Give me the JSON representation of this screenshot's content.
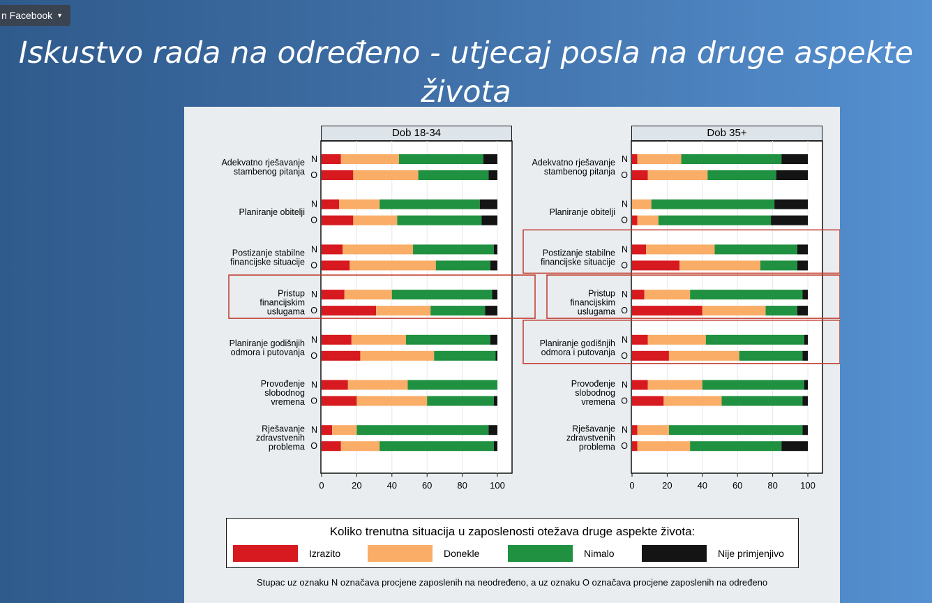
{
  "toolbar": {
    "share_label": "n Facebook"
  },
  "slide": {
    "title": "Iskustvo rada na određeno - utjecaj posla na druge aspekte života"
  },
  "legend": {
    "title": "Koliko trenutna situacija u zaposlenosti otežava druge aspekte života:",
    "items": [
      {
        "label": "Izrazito",
        "color": "#d71920"
      },
      {
        "label": "Donekle",
        "color": "#f9ad66"
      },
      {
        "label": "Nimalo",
        "color": "#1f9140"
      },
      {
        "label": "Nije primjenjivo",
        "color": "#141414"
      }
    ]
  },
  "footnote": "Stupac uz oznaku N označava procjene zaposlenih na neodređeno, a uz oznaku O označava procjene zaposlenih na određeno",
  "chart_data": {
    "type": "bar",
    "stacked": true,
    "orientation": "horizontal",
    "xlim": [
      0,
      100
    ],
    "xticks": [
      0,
      20,
      40,
      60,
      80,
      100
    ],
    "series_names": [
      "Izrazito",
      "Donekle",
      "Nimalo",
      "Nije primjenjivo"
    ],
    "colors": [
      "#d71920",
      "#f9ad66",
      "#1f9140",
      "#141414"
    ],
    "categories": [
      [
        "Adekvatno rješavanje",
        "stambenog pitanja"
      ],
      [
        "Planiranje obitelji"
      ],
      [
        "Postizanje stabilne",
        "financijske situacije"
      ],
      [
        "Pristup",
        "financijskim",
        "uslugama"
      ],
      [
        "Planiranje godišnjih",
        "odmora i putovanja"
      ],
      [
        "Provođenje",
        "slobodnog",
        "vremena"
      ],
      [
        "Rješavanje",
        "zdravstvenih",
        "problema"
      ]
    ],
    "row_labels": [
      "N",
      "O"
    ],
    "panels": [
      {
        "title": "Dob 18-34",
        "highlighted_categories": [
          3
        ],
        "values": [
          [
            [
              11,
              33,
              48,
              8
            ],
            [
              18,
              37,
              40,
              5
            ]
          ],
          [
            [
              10,
              23,
              57,
              10
            ],
            [
              18,
              25,
              48,
              9
            ]
          ],
          [
            [
              12,
              40,
              46,
              2
            ],
            [
              16,
              49,
              31,
              4
            ]
          ],
          [
            [
              13,
              27,
              57,
              3
            ],
            [
              31,
              31,
              31,
              7
            ]
          ],
          [
            [
              17,
              31,
              48,
              4
            ],
            [
              22,
              42,
              35,
              1
            ]
          ],
          [
            [
              15,
              34,
              51,
              0
            ],
            [
              20,
              40,
              38,
              2
            ]
          ],
          [
            [
              6,
              14,
              75,
              5
            ],
            [
              11,
              22,
              65,
              2
            ]
          ]
        ]
      },
      {
        "title": "Dob 35+",
        "highlighted_categories": [
          2,
          3,
          4
        ],
        "values": [
          [
            [
              3,
              25,
              57,
              15
            ],
            [
              9,
              34,
              39,
              18
            ]
          ],
          [
            [
              0,
              11,
              70,
              19
            ],
            [
              3,
              12,
              64,
              21
            ]
          ],
          [
            [
              8,
              39,
              47,
              6
            ],
            [
              27,
              46,
              21,
              6
            ]
          ],
          [
            [
              7,
              26,
              64,
              3
            ],
            [
              40,
              36,
              18,
              6
            ]
          ],
          [
            [
              9,
              33,
              56,
              2
            ],
            [
              21,
              40,
              36,
              3
            ]
          ],
          [
            [
              9,
              31,
              58,
              2
            ],
            [
              18,
              33,
              46,
              3
            ]
          ],
          [
            [
              3,
              18,
              76,
              3
            ],
            [
              3,
              30,
              52,
              15
            ]
          ]
        ]
      }
    ]
  }
}
